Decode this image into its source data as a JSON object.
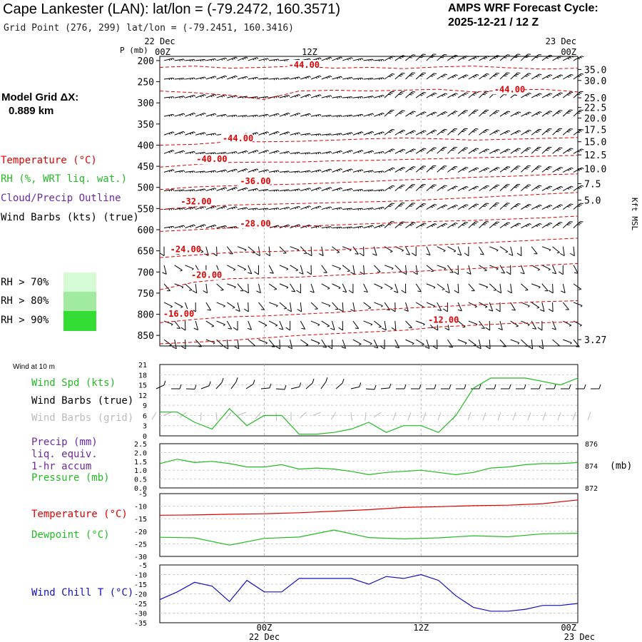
{
  "header": {
    "title": "Cape Lankester (LAN):  lat/lon = (-79.2472, 160.3571)",
    "grid_point": "Grid Point (276, 299) lat/lon = (-79.2451, 160.3416)",
    "cycle_line1": "AMPS WRF Forecast Cycle:",
    "cycle_line2": "2025-12-21 / 12  Z"
  },
  "model_grid": {
    "line1": "Model Grid ΔX:",
    "line2": "0.889 km"
  },
  "legend": {
    "temperature": "Temperature (°C)",
    "rh": "RH (%, WRT liq. wat.)",
    "cloud": "Cloud/Precip Outline",
    "wind": "Wind Barbs (kts) (true)",
    "rh70": "RH > 70%",
    "rh80": "RH > 80%",
    "rh90": "RH > 90%"
  },
  "colors": {
    "temperature": "#e00000",
    "rh": "#22bb22",
    "cloud": "#6a2a9a",
    "wind_grid": "#bbbbbb",
    "windchill": "#1010c0",
    "rh70": "#d4fbd4",
    "rh80": "#a0eba0",
    "rh90": "#33dd33"
  },
  "time_axis": {
    "top_dates": [
      "22 Dec",
      "23 Dec"
    ],
    "labels": [
      "00Z",
      "12Z",
      "00Z"
    ],
    "bottom_dates": [
      "22 Dec",
      "23 Dec"
    ]
  },
  "chart_data": [
    {
      "type": "line",
      "name": "time-height",
      "ylabel": "P (mb)",
      "right_label": "Kft MSL",
      "y_ticks": [
        200,
        250,
        300,
        350,
        400,
        450,
        500,
        550,
        600,
        650,
        700,
        750,
        800,
        850
      ],
      "kft_ticks": [
        "35.0",
        "30.0",
        "25.0",
        "22.5",
        "20.0",
        "17.5",
        "15.0",
        "12.5",
        "10.0",
        "7.5",
        "5.0",
        "3.27"
      ],
      "kft_pressures": [
        221,
        247,
        288,
        311,
        336,
        363,
        392,
        423,
        456,
        491,
        530,
        860
      ],
      "isotherm_labels": [
        {
          "text": "-44.00",
          "p": 217,
          "t": 7.4
        },
        {
          "text": "-44.00",
          "p": 275,
          "t": 19.2
        },
        {
          "text": "-44.00",
          "p": 391,
          "t": 3.6
        },
        {
          "text": "-40.00",
          "p": 440,
          "t": 2.1
        },
        {
          "text": "-36.00",
          "p": 492,
          "t": 4.6
        },
        {
          "text": "-32.00",
          "p": 540,
          "t": 1.2
        },
        {
          "text": "-28.00",
          "p": 592,
          "t": 4.6
        },
        {
          "text": "-24.00",
          "p": 653,
          "t": 0.6
        },
        {
          "text": "-20.00",
          "p": 714,
          "t": 1.8
        },
        {
          "text": "-16.00",
          "p": 806,
          "t": 0.2
        },
        {
          "text": "-12.00",
          "p": 820,
          "t": 15.4
        }
      ],
      "isotherms_p": [
        [
          216,
          213,
          218,
          216,
          213,
          218,
          216,
          219,
          215,
          213,
          217,
          220,
          218
        ],
        [
          272,
          276,
          282,
          292,
          272,
          270,
          272,
          270,
          268,
          274,
          270,
          268,
          274
        ],
        [
          400,
          398,
          392,
          392,
          391,
          388,
          385,
          383,
          385,
          388,
          386,
          384,
          382
        ],
        [
          452,
          446,
          441,
          440,
          440,
          437,
          436,
          434,
          432,
          430,
          428,
          426,
          424
        ],
        [
          505,
          499,
          496,
          494,
          492,
          489,
          486,
          482,
          480,
          476,
          474,
          470,
          468
        ],
        [
          552,
          546,
          542,
          540,
          538,
          536,
          534,
          532,
          528,
          524,
          520,
          516,
          512
        ],
        [
          604,
          600,
          596,
          594,
          592,
          589,
          586,
          583,
          580,
          578,
          575,
          572,
          568
        ],
        [
          666,
          660,
          654,
          652,
          650,
          648,
          644,
          640,
          636,
          632,
          628,
          624,
          620
        ],
        [
          742,
          724,
          716,
          714,
          712,
          708,
          704,
          700,
          696,
          692,
          688,
          684,
          680
        ],
        [
          820,
          812,
          806,
          804,
          800,
          796,
          790,
          786,
          782,
          778,
          774,
          770,
          768
        ],
        [
          870,
          866,
          862,
          856,
          850,
          846,
          842,
          838,
          830,
          826,
          822,
          820,
          818
        ]
      ]
    },
    {
      "type": "line",
      "name": "wind-10m",
      "title": "Wind at 10 m",
      "labels": [
        "Wind Spd (kts)",
        "Wind Barbs (true)",
        "Wind Barbs (grid)"
      ],
      "ylim": [
        0,
        21
      ],
      "y_ticks": [
        0,
        3,
        6,
        9,
        12,
        15,
        18,
        21
      ],
      "x": [
        0,
        1,
        2,
        3,
        4,
        5,
        6,
        7,
        8,
        9,
        10,
        11,
        12,
        13,
        14,
        15,
        16,
        17,
        18,
        19,
        20,
        21,
        22,
        23,
        24
      ],
      "series": [
        {
          "values": [
            7,
            7,
            4,
            2,
            8,
            3,
            6,
            6,
            0.5,
            0.5,
            1,
            2,
            4,
            1,
            3,
            3,
            1,
            6,
            14,
            17,
            17,
            17,
            16,
            15,
            17
          ]
        }
      ]
    },
    {
      "type": "line",
      "name": "precip-pressure",
      "labels": [
        "Precip (mm)",
        "liq. equiv.",
        "1-hr accum",
        "Pressure (mb)"
      ],
      "ylim": [
        0,
        2.5
      ],
      "y_ticks": [
        "0.0",
        "0.5",
        "1.0",
        "1.5",
        "2.0",
        "2.5"
      ],
      "right_ticks": [
        "876",
        "874",
        "872"
      ],
      "right_unit": "(mb)",
      "x": [
        0,
        1,
        2,
        3,
        4,
        5,
        6,
        7,
        8,
        9,
        10,
        11,
        12,
        13,
        14,
        15,
        16,
        17,
        18,
        19,
        20,
        21,
        22,
        23,
        24
      ],
      "series": [
        {
          "values": [
            874.2,
            874.6,
            874.3,
            874.4,
            874.2,
            873.9,
            873.9,
            874.1,
            873.7,
            873.8,
            873.7,
            873.5,
            873.2,
            873.4,
            873.5,
            873.6,
            873.4,
            873.2,
            873.4,
            873.8,
            873.9,
            874.1,
            874.2,
            874.2,
            874.3
          ]
        }
      ]
    },
    {
      "type": "line",
      "name": "temperature",
      "labels": [
        "Temperature (°C)",
        "Dewpoint (°C)"
      ],
      "ylim": [
        -30,
        -5
      ],
      "y_ticks": [
        -5,
        -10,
        -15,
        -20,
        -25,
        -30
      ],
      "x": [
        0,
        2,
        4,
        6,
        8,
        10,
        12,
        14,
        16,
        18,
        20,
        22,
        24
      ],
      "series": [
        {
          "values": [
            -13.6,
            -13.5,
            -13.2,
            -13.0,
            -12.6,
            -12.0,
            -11.4,
            -10.5,
            -10.2,
            -9.8,
            -9.6,
            -9.0,
            -7.5
          ]
        },
        {
          "values": [
            -22.4,
            -22.6,
            -25.5,
            -22.8,
            -22.3,
            -19.5,
            -22.5,
            -23.0,
            -22.6,
            -21.8,
            -22.2,
            -21.0,
            -20.8
          ]
        }
      ]
    },
    {
      "type": "line",
      "name": "wind-chill",
      "labels": [
        "Wind Chill T (°C)"
      ],
      "ylim": [
        -35,
        -5
      ],
      "y_ticks": [
        -5,
        -10,
        -15,
        -20,
        -25,
        -30,
        -35
      ],
      "x": [
        0,
        1,
        2,
        3,
        4,
        5,
        6,
        7,
        8,
        9,
        10,
        11,
        12,
        13,
        14,
        15,
        16,
        17,
        18,
        19,
        20,
        21,
        22,
        23,
        24
      ],
      "series": [
        {
          "values": [
            -23,
            -19,
            -14,
            -16,
            -24,
            -13,
            -19,
            -19,
            -12,
            -12,
            -12,
            -12,
            -15,
            -11,
            -12,
            -10,
            -13,
            -21,
            -27,
            -29,
            -29,
            -28,
            -26,
            -26,
            -25
          ]
        }
      ]
    }
  ]
}
